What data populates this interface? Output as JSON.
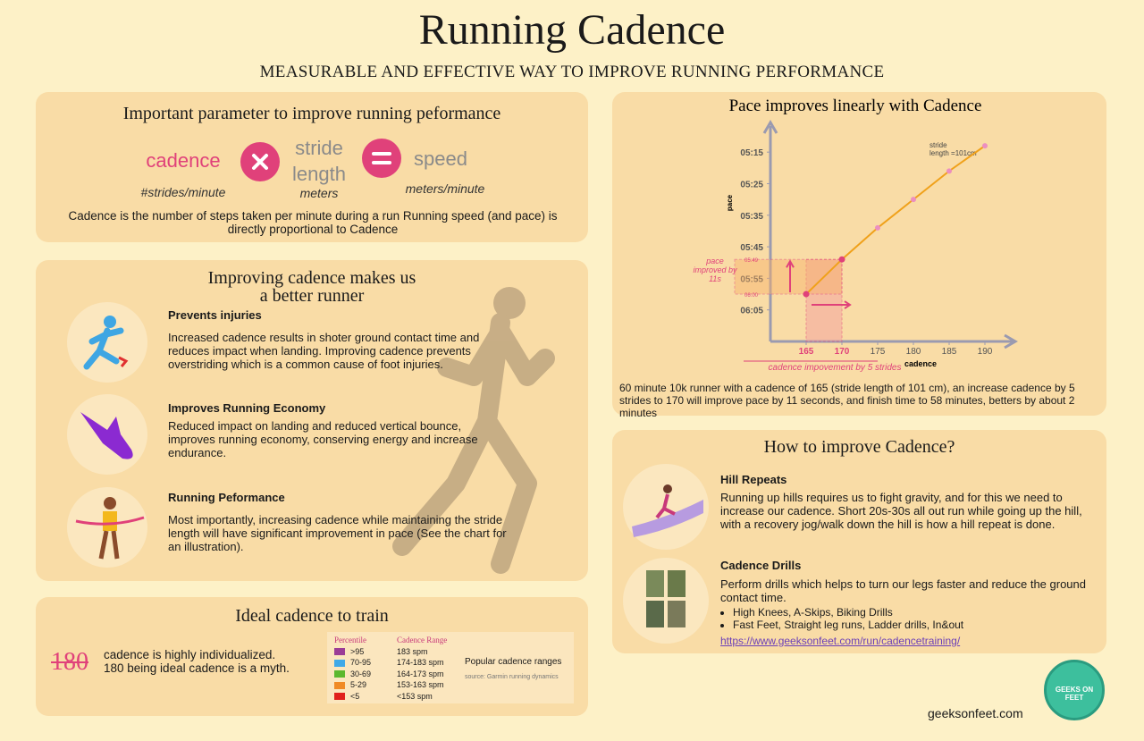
{
  "header": {
    "title": "Running Cadence",
    "subtitle": "MEASURABLE AND EFFECTIVE WAY TO IMPROVE RUNNING PERFORMANCE"
  },
  "formula": {
    "heading": "Important parameter to improve running peformance",
    "terms": [
      {
        "word": "cadence",
        "unit": "#strides/minute"
      },
      {
        "word": "stride length",
        "unit": "meters"
      },
      {
        "word": "speed",
        "unit": "meters/minute"
      }
    ],
    "text": "Cadence is the number of steps taken per minute during a run Running speed (and pace) is directly proportional to Cadence"
  },
  "benefits": {
    "heading": [
      "Improving cadence makes us",
      "a better runner"
    ],
    "items": [
      {
        "title": "Prevents injuries",
        "text": "Increased cadence results in shoter ground contact time and reduces impact when landing. Improving cadence prevents overstriding which is a common cause of foot injuries."
      },
      {
        "title": "Improves Running Economy",
        "text": "Reduced impact on landing and reduced vertical bounce, improves running economy, conserving energy and increase endurance."
      },
      {
        "title": "Running Peformance",
        "text": "Most importantly, increasing cadence while maintaining the stride length will have significant improvement in pace (See the chart for an illustration)."
      }
    ]
  },
  "ideal": {
    "heading": "Ideal cadence to train",
    "big": "180",
    "text": [
      "cadence is highly individualized.",
      "180 being ideal cadence is a myth."
    ],
    "table": {
      "columns": [
        "Percentile",
        "Cadence Range"
      ],
      "rows": [
        [
          ">95",
          "183 spm"
        ],
        [
          "70-95",
          "174-183 spm"
        ],
        [
          "30-69",
          "164-173 spm"
        ],
        [
          "5-29",
          "153-163 spm"
        ],
        [
          "<5",
          "<153 spm"
        ]
      ],
      "colors": [
        "#9b3d96",
        "#3fa9e8",
        "#5cb82e",
        "#f08a24",
        "#e0201b"
      ],
      "note": "Popular cadence ranges",
      "source": "source: Garmin running dynamics"
    }
  },
  "chart_data": {
    "type": "line",
    "title": "Pace improves linearly with Cadence",
    "x_label": "cadence",
    "y_label": "pace",
    "x": [
      165,
      170,
      175,
      180,
      185,
      190
    ],
    "values": [
      360,
      349,
      339,
      330,
      321,
      313
    ],
    "color": "#f0a11a",
    "marker_color": "#ec8fc0",
    "xlim": [
      160,
      194
    ],
    "ylim": [
      375,
      309
    ],
    "xticks": [
      165,
      170,
      175,
      180,
      185,
      190
    ],
    "yticks": [
      {
        "value": 315,
        "label": "05:15"
      },
      {
        "value": 325,
        "label": "05:25"
      },
      {
        "value": 335,
        "label": "05:35"
      },
      {
        "value": 345,
        "label": "05:45"
      },
      {
        "value": 355,
        "label": "05:55"
      },
      {
        "value": 365,
        "label": "06:05"
      }
    ],
    "annotations": {
      "stride": [
        "stride",
        "length =101cm"
      ],
      "pace_gain": [
        "pace",
        "improved by",
        "11s"
      ],
      "cadence_gain": "cadence impovement by 5 strides",
      "pace_from": "06:00",
      "pace_to": "05:49"
    },
    "caption": "60 minute 10k runner with a cadence of 165 (stride length of 101 cm), an increase cadence by 5 strides to 170 will improve pace by 11 seconds, and finish time to 58 minutes, betters by about 2 minutes"
  },
  "improve": {
    "heading": "How to improve Cadence?",
    "items": [
      {
        "title": "Hill Repeats",
        "text": "Running up hills requires us to fight gravity, and for this we need to increase our cadence. Short 20s-30s all out run while going up the hill, with a recovery jog/walk down the hill is how a hill repeat is done."
      },
      {
        "title": "Cadence Drills",
        "text": "Perform drills which helps to turn our legs faster and reduce the ground contact time.",
        "bullets": [
          "High Knees, A-Skips, Biking Drills",
          "Fast Feet, Straight leg runs, Ladder drills, In&out"
        ],
        "link": "https://www.geeksonfeet.com/run/cadencetraining/"
      }
    ]
  },
  "footer": {
    "site": "geeksonfeet.com",
    "logo": "GEEKS ON FEET"
  }
}
